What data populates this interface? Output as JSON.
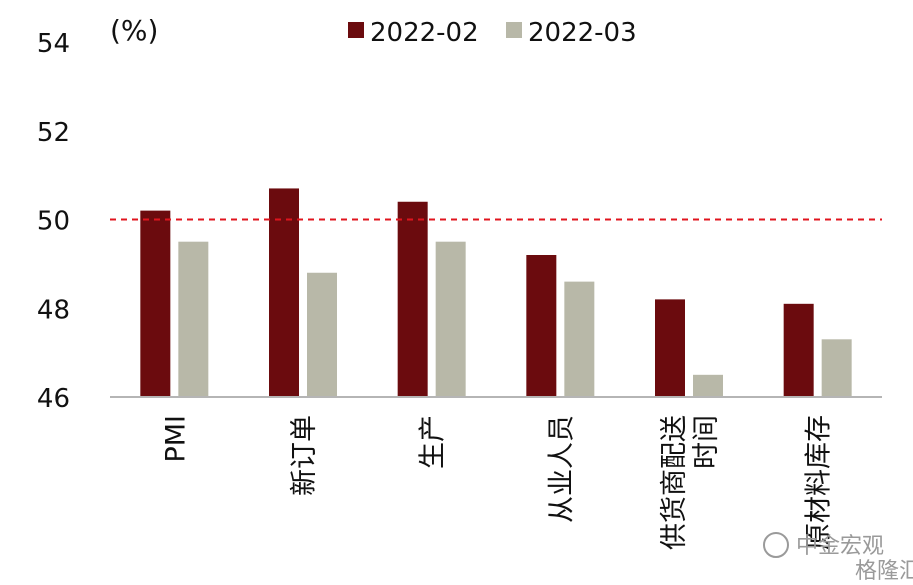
{
  "chart_data": {
    "type": "bar",
    "unit_label": "(%)",
    "categories": [
      "PMI",
      "新订单",
      "生产",
      "从业人员",
      "供货商配送时间",
      "原材料库存"
    ],
    "category_lines": [
      [
        "PMI"
      ],
      [
        "新订单"
      ],
      [
        "生产"
      ],
      [
        "从业人员"
      ],
      [
        "供货商配送",
        "时间"
      ],
      [
        "原材料库存"
      ]
    ],
    "series": [
      {
        "name": "2022-02",
        "color": "#6b0b0e",
        "values": [
          50.2,
          50.7,
          50.4,
          49.2,
          48.2,
          48.1
        ]
      },
      {
        "name": "2022-03",
        "color": "#b8b8a8",
        "values": [
          49.5,
          48.8,
          49.5,
          48.6,
          46.5,
          47.3
        ]
      }
    ],
    "ylim": [
      46,
      54
    ],
    "yticks": [
      46,
      48,
      50,
      52,
      54
    ],
    "reference_line": {
      "value": 50,
      "color": "#e0141e",
      "style": "dashed"
    },
    "legend_position": "top",
    "grid": false
  },
  "watermark": {
    "text": "中金宏观",
    "sub": "格隆汇"
  }
}
